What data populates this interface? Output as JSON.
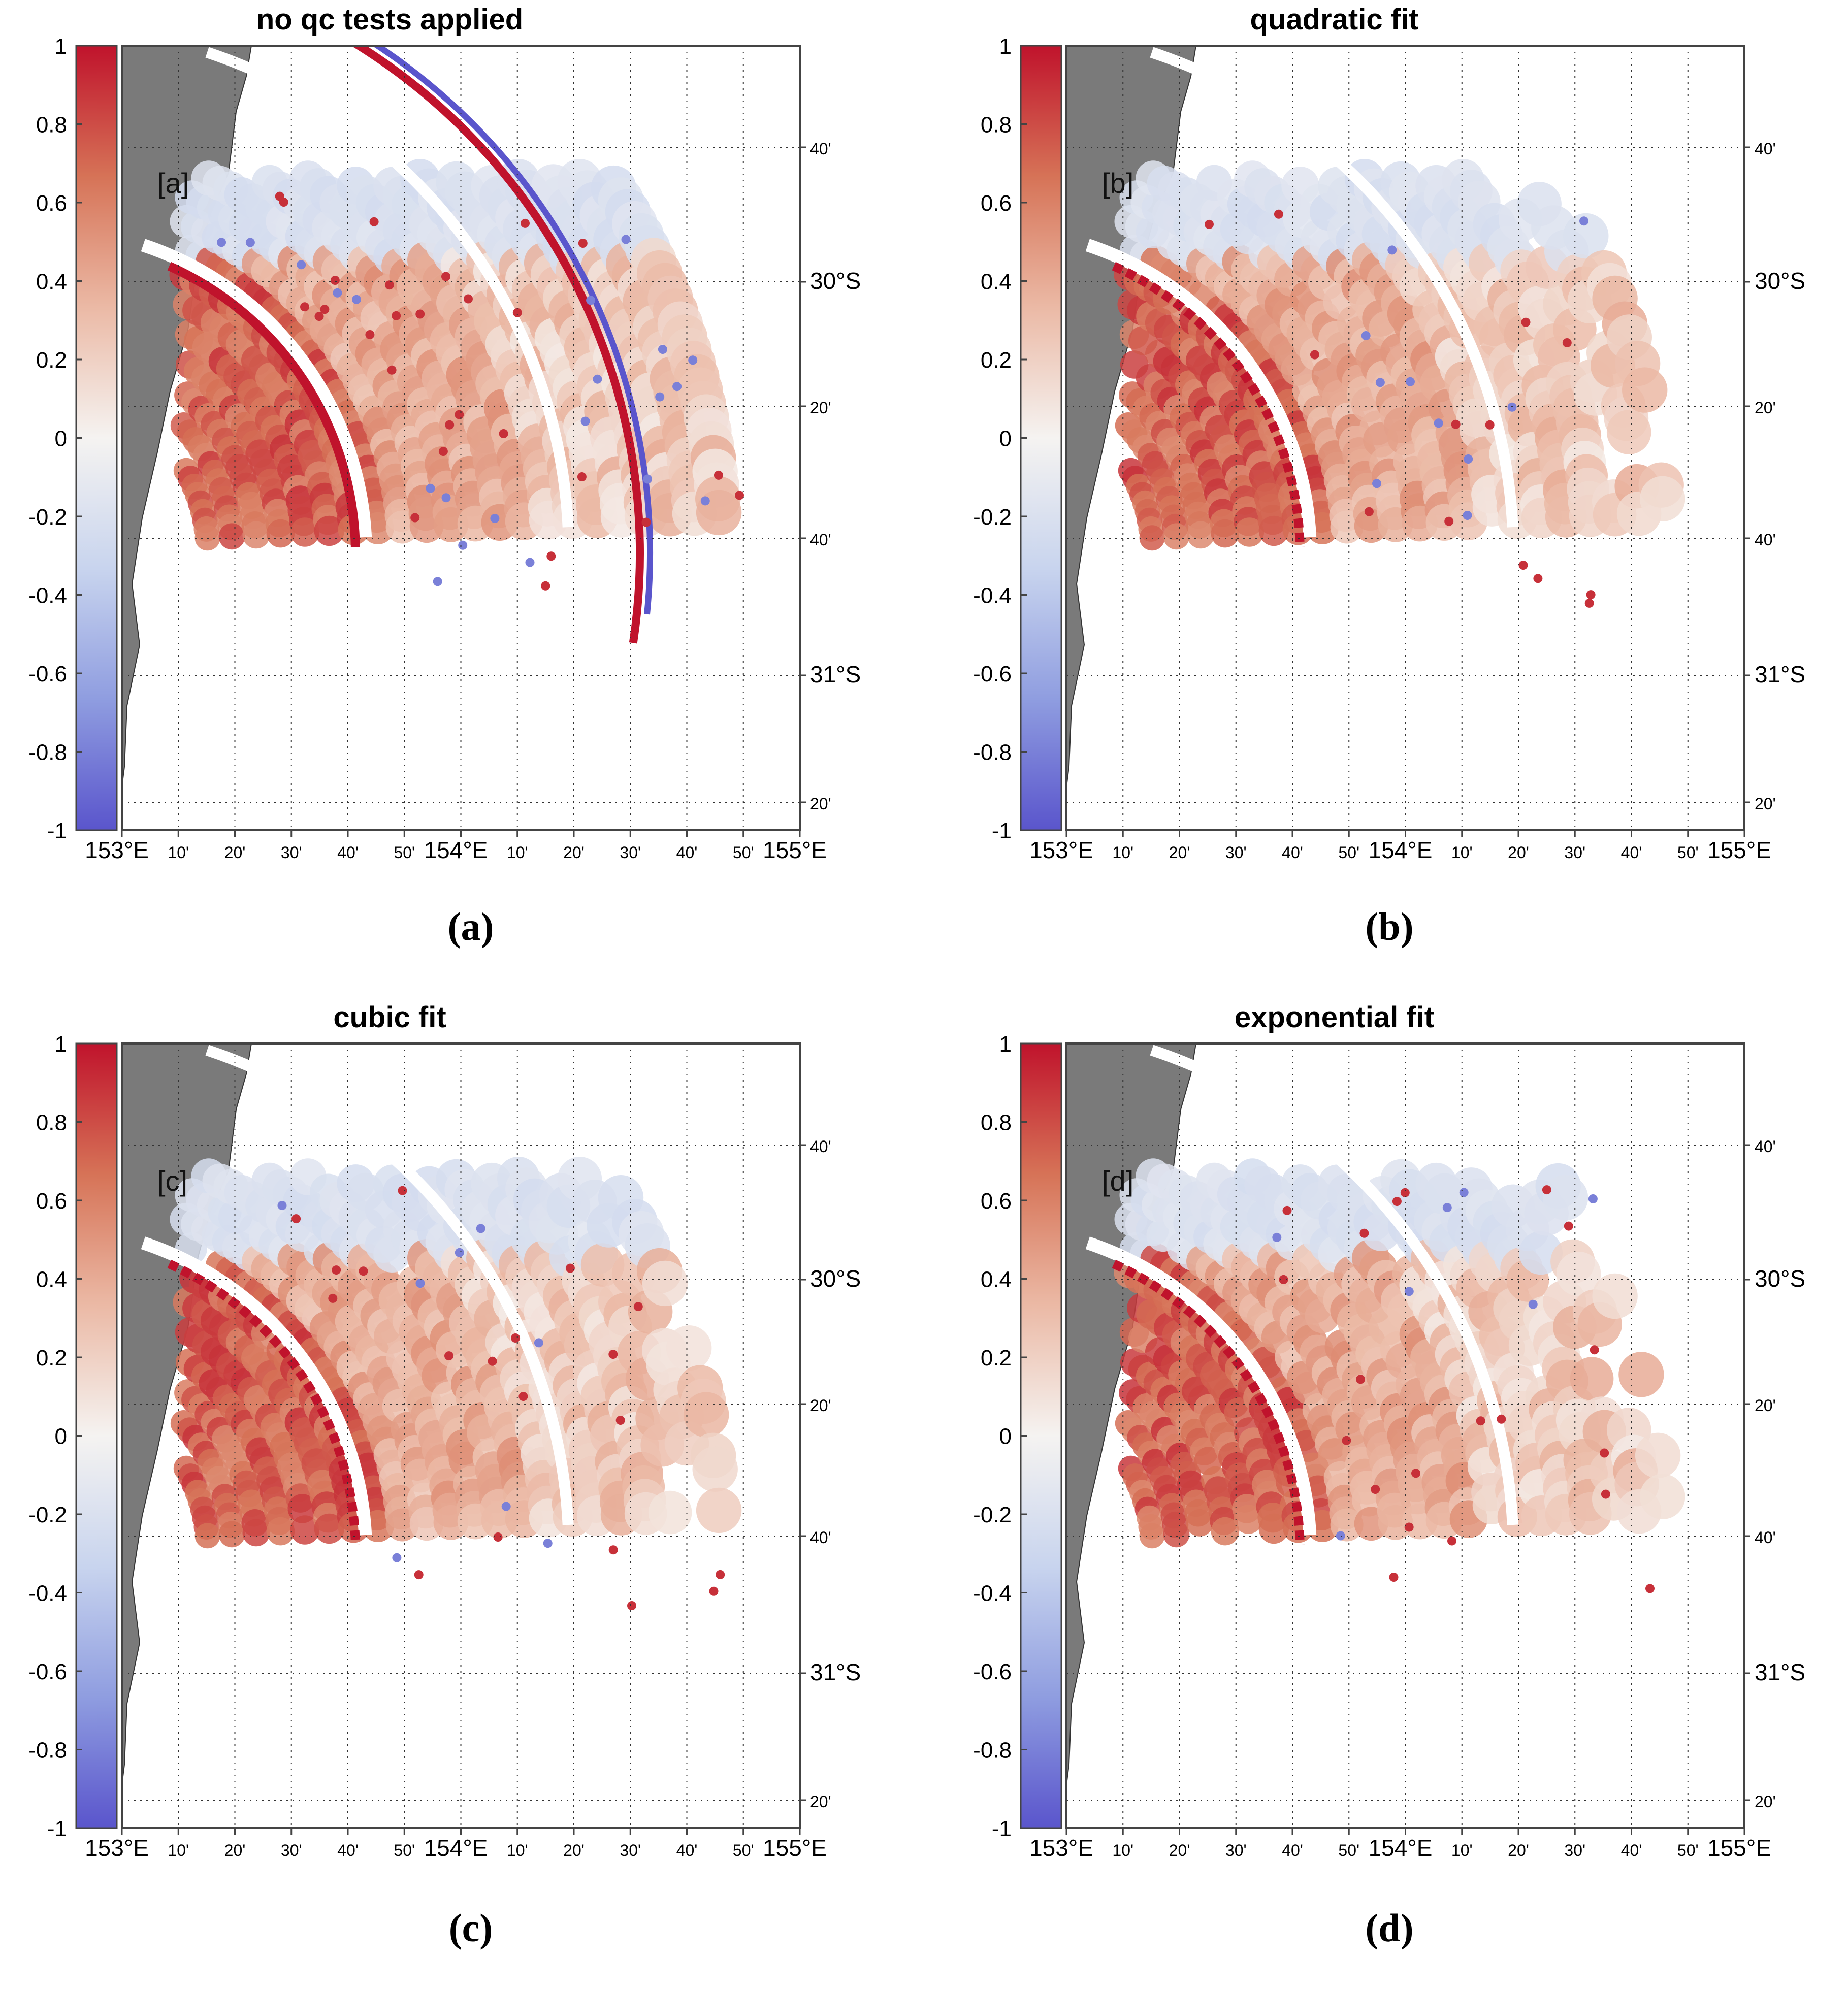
{
  "colors": {
    "land": "#7a7a7a",
    "colormap": [
      "#5a55cc",
      "#8f9de0",
      "#c8d4ee",
      "#f5f3f1",
      "#ebb9a5",
      "#d67357",
      "#c0132c"
    ]
  },
  "shared": {
    "colorbar_ticks": [
      "1",
      "0.8",
      "0.6",
      "0.4",
      "0.2",
      "0",
      "-0.2",
      "-0.4",
      "-0.6",
      "-0.8",
      "-1"
    ],
    "colorbar_range": [
      -1,
      1
    ],
    "lon_labels": [
      {
        "text": "153°E",
        "major": true
      },
      {
        "text": "10'",
        "major": false
      },
      {
        "text": "20'",
        "major": false
      },
      {
        "text": "30'",
        "major": false
      },
      {
        "text": "40'",
        "major": false
      },
      {
        "text": "50'",
        "major": false
      },
      {
        "text": "154°E",
        "major": true
      },
      {
        "text": "10'",
        "major": false
      },
      {
        "text": "20'",
        "major": false
      },
      {
        "text": "30'",
        "major": false
      },
      {
        "text": "40'",
        "major": false
      },
      {
        "text": "50'",
        "major": false
      },
      {
        "text": "155°E",
        "major": true
      }
    ],
    "lat_labels": [
      {
        "text": "40'",
        "major": false
      },
      {
        "text": "30°S",
        "major": true
      },
      {
        "text": "20'",
        "major": false
      },
      {
        "text": "40'",
        "major": false
      },
      {
        "text": "31°S",
        "major": true
      },
      {
        "text": "20'",
        "major": false
      }
    ]
  },
  "panels": [
    {
      "id": "a",
      "title": "no qc tests applied",
      "tag": "[a]",
      "caption": "(a)",
      "qc": "none"
    },
    {
      "id": "b",
      "title": "quadratic fit",
      "tag": "[b]",
      "caption": "(b)",
      "qc": "quadratic"
    },
    {
      "id": "c",
      "title": "cubic fit",
      "tag": "[c]",
      "caption": "(c)",
      "qc": "cubic"
    },
    {
      "id": "d",
      "title": "exponential fit",
      "tag": "[d]",
      "caption": "(d)",
      "qc": "exponential"
    }
  ]
}
